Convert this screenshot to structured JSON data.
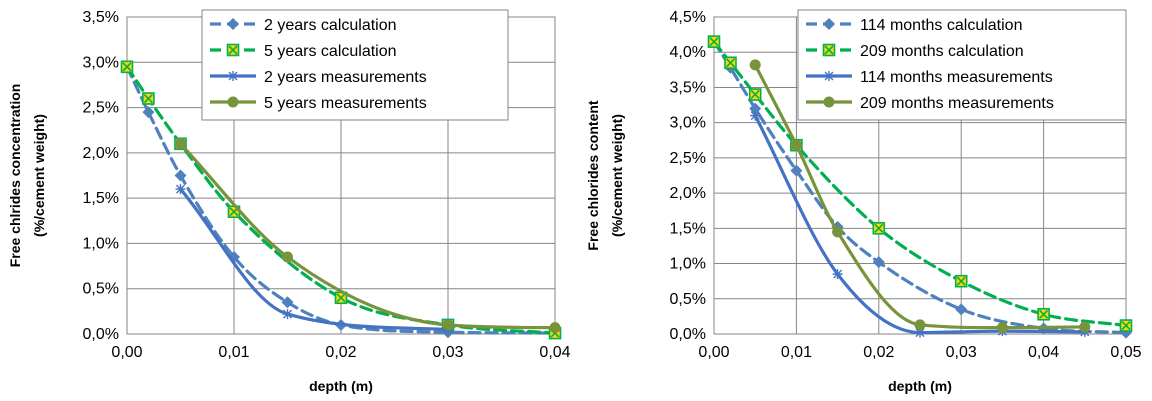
{
  "chart_data": [
    {
      "type": "line",
      "title": "",
      "xlabel": "depth (m)",
      "ylabel_line1": "Free chlrides concentration",
      "ylabel_line2": "(%/cement weight)",
      "xlim": [
        0,
        0.04
      ],
      "ylim": [
        0,
        3.5
      ],
      "x_ticks": [
        0,
        0.01,
        0.02,
        0.03,
        0.04
      ],
      "x_tick_labels": [
        "0,00",
        "0,01",
        "0,02",
        "0,03",
        "0,04"
      ],
      "y_ticks": [
        0,
        0.5,
        1.0,
        1.5,
        2.0,
        2.5,
        3.0,
        3.5
      ],
      "y_tick_labels": [
        "0,0%",
        "0,5%",
        "1,0%",
        "1,5%",
        "2,0%",
        "2,5%",
        "3,0%",
        "3,5%"
      ],
      "grid": "both",
      "legend_position": "top-right",
      "series": [
        {
          "name": "2 years calculation",
          "style": "dashed",
          "marker": "diamond",
          "color": "#4F81BD",
          "x": [
            0,
            0.002,
            0.005,
            0.01,
            0.015,
            0.02,
            0.03,
            0.04
          ],
          "y": [
            2.95,
            2.45,
            1.75,
            0.85,
            0.35,
            0.1,
            0.02,
            0.01
          ]
        },
        {
          "name": "5 years calculation",
          "style": "dashed",
          "marker": "square-x",
          "color": "#00B050",
          "x": [
            0,
            0.002,
            0.005,
            0.01,
            0.02,
            0.03,
            0.04
          ],
          "y": [
            2.95,
            2.6,
            2.1,
            1.35,
            0.4,
            0.1,
            0.01
          ]
        },
        {
          "name": "2 years measurements",
          "style": "solid",
          "marker": "star",
          "color": "#4472C4",
          "x": [
            0.005,
            0.015,
            0.03
          ],
          "y": [
            1.6,
            0.22,
            0.05
          ]
        },
        {
          "name": "5 years measurements",
          "style": "solid",
          "marker": "circle",
          "color": "#77933C",
          "x": [
            0.005,
            0.015,
            0.03,
            0.04
          ],
          "y": [
            2.1,
            0.85,
            0.1,
            0.07
          ]
        }
      ]
    },
    {
      "type": "line",
      "title": "",
      "xlabel": "depth (m)",
      "ylabel_line1": "Free chlorides content",
      "ylabel_line2": "(%/cement weight)",
      "xlim": [
        0,
        0.05
      ],
      "ylim": [
        0,
        4.5
      ],
      "x_ticks": [
        0,
        0.01,
        0.02,
        0.03,
        0.04,
        0.05
      ],
      "x_tick_labels": [
        "0,00",
        "0,01",
        "0,02",
        "0,03",
        "0,04",
        "0,05"
      ],
      "y_ticks": [
        0,
        0.5,
        1.0,
        1.5,
        2.0,
        2.5,
        3.0,
        3.5,
        4.0,
        4.5
      ],
      "y_tick_labels": [
        "0,0%",
        "0,5%",
        "1,0%",
        "1,5%",
        "2,0%",
        "2,5%",
        "3,0%",
        "3,5%",
        "4,0%",
        "4,5%"
      ],
      "grid": "both",
      "legend_position": "top-right",
      "series": [
        {
          "name": "114 months calculation",
          "style": "dashed",
          "marker": "diamond",
          "color": "#4F81BD",
          "x": [
            0,
            0.002,
            0.005,
            0.01,
            0.015,
            0.02,
            0.03,
            0.04,
            0.05
          ],
          "y": [
            4.15,
            3.78,
            3.2,
            2.32,
            1.52,
            1.02,
            0.35,
            0.08,
            0.02
          ]
        },
        {
          "name": "209 months calculation",
          "style": "dashed",
          "marker": "square-x",
          "color": "#00B050",
          "x": [
            0,
            0.002,
            0.005,
            0.01,
            0.02,
            0.03,
            0.04,
            0.05
          ],
          "y": [
            4.15,
            3.85,
            3.4,
            2.68,
            1.5,
            0.75,
            0.28,
            0.12
          ]
        },
        {
          "name": "114 months measurements",
          "style": "solid",
          "marker": "star",
          "color": "#4472C4",
          "x": [
            0.005,
            0.015,
            0.025,
            0.035,
            0.045
          ],
          "y": [
            3.1,
            0.85,
            0.02,
            0.04,
            0.03
          ]
        },
        {
          "name": "209 months measurements",
          "style": "solid",
          "marker": "circle",
          "color": "#77933C",
          "x": [
            0.005,
            0.01,
            0.015,
            0.025,
            0.035,
            0.045
          ],
          "y": [
            3.82,
            2.68,
            1.45,
            0.13,
            0.09,
            0.1
          ]
        }
      ]
    }
  ]
}
